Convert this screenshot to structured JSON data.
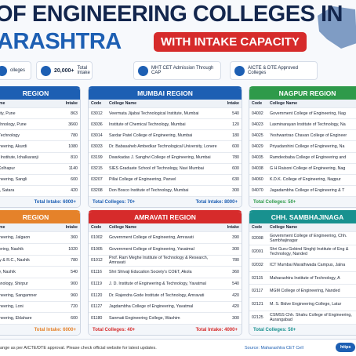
{
  "header": {
    "title_line1": "OF ENGINEERING COLLEGES IN",
    "title_line2": "ARASHTRA",
    "badge": "WITH INTAKE CAPACITY"
  },
  "stats": [
    {
      "number": "",
      "label": "olleges"
    },
    {
      "number": "20,000+",
      "label": "Total Intake"
    },
    {
      "number": "",
      "label": "MHT CET Admission Through CAP"
    },
    {
      "number": "",
      "label": "AICTE & DTE Approved Colleges"
    }
  ],
  "panels": [
    {
      "title": "REGION",
      "columns": [
        "Name",
        "Intake"
      ],
      "rows": [
        [
          "ersity, Pune",
          "863"
        ],
        [
          "Technology, Pune",
          "3660"
        ],
        [
          "er Technology",
          "780"
        ],
        [
          "ngineering, Akurdi",
          "1080"
        ],
        [
          "ing Institute, Ichalkaranji",
          "810"
        ],
        [
          "g, Kolhapur",
          "1140"
        ],
        [
          "ngineering, Sangli",
          "600"
        ],
        [
          "OE, Satara",
          "420"
        ]
      ],
      "totals": [
        "Total Intake: 6000+"
      ]
    },
    {
      "title": "MUMBAI REGION",
      "columns": [
        "Code",
        "College Name",
        "Intake"
      ],
      "rows": [
        [
          "03012",
          "Veermata Jijabai Technological Institute, Mumbai",
          "540"
        ],
        [
          "03036",
          "Institute of Chemical Technology, Mumbai",
          "120"
        ],
        [
          "03014",
          "Sardar Patel College of Engineering, Mumbai",
          "180"
        ],
        [
          "03033",
          "Dr. Babasaheb Ambedkar Technological University, Lonere",
          "600"
        ],
        [
          "03199",
          "Dwarkadas J. Sanghvi College of Engineering, Mumbai",
          "780"
        ],
        [
          "03215",
          "SIES Graduate School of Technology, Navi Mumbai",
          "600"
        ],
        [
          "03207",
          "Pillai College of Engineering, Panvel",
          "630"
        ],
        [
          "03208",
          "Don Bosco Institute of Technology, Mumbai",
          "300"
        ]
      ],
      "totals": [
        "Total Colleges: 70+",
        "Total Intake: 8000+"
      ]
    },
    {
      "title": "NAGPUR REGION",
      "columns": [
        "Code",
        "College Name"
      ],
      "rows": [
        [
          "04002",
          "Government College of Engineering, Nag"
        ],
        [
          "04023",
          "Laxminarayan Institute of Technology, Na"
        ],
        [
          "04025",
          "Yeshwantrao Chavan College of Engineer"
        ],
        [
          "04029",
          "Priyadarshini College of Engineering, Na"
        ],
        [
          "04035",
          "Ramdeobaba College of Engineering and"
        ],
        [
          "04038",
          "G H Raisoni College of Engineering, Nag"
        ],
        [
          "04060",
          "K.D.K. College of Engineering, Nagpur"
        ],
        [
          "04070",
          "Jagadambha College of Engineering & T"
        ]
      ],
      "totals": [
        "Total Colleges: 50+"
      ]
    },
    {
      "title": "REGION",
      "columns": [
        "Name",
        "Intake"
      ],
      "rows": [
        [
          "ngineering, Jalgaon",
          "360"
        ],
        [
          "ineering, Nashik",
          "1020"
        ],
        [
          "logy & R.C., Nashik",
          "780"
        ],
        [
          "City, Nashik",
          "540"
        ],
        [
          "echnology, Shirpur",
          "900"
        ],
        [
          "ngineering, Sangamner",
          "960"
        ],
        [
          "ngineering, Loni",
          "720"
        ],
        [
          "ngineering, Eklahare",
          "600"
        ]
      ],
      "totals": [
        "Total Intake: 6000+"
      ]
    },
    {
      "title": "AMRAVATI REGION",
      "columns": [
        "Code",
        "College Name",
        "Intake"
      ],
      "rows": [
        [
          "01002",
          "Government College of Engineering, Amravati",
          "390"
        ],
        [
          "01005",
          "Government College of Engineering, Yavatmal",
          "300"
        ],
        [
          "01012",
          "Prof. Ram Meghe Institute of Technology & Research, Amravati",
          "780"
        ],
        [
          "01116",
          "Shri Shivaji Education Society's COET, Akola",
          "360"
        ],
        [
          "01119",
          "J. D. Institute of Engineering & Technology, Yavatmal",
          "540"
        ],
        [
          "01120",
          "Dr. Rajendra Gode Institute of Technology, Amravati",
          "420"
        ],
        [
          "01127",
          "Jagdambha College of Engineering, Yavatmal",
          "420"
        ],
        [
          "01180",
          "Sanmati Engineering College, Washim",
          "300"
        ]
      ],
      "totals": [
        "Total Colleges: 40+",
        "Total Intake: 4000+"
      ]
    },
    {
      "title": "CHH. SAMBHAJINAGA",
      "columns": [
        "Code",
        "College Name"
      ],
      "rows": [
        [
          "02008",
          "Government College of Engineering, Chh. Sambhajinagar"
        ],
        [
          "02001",
          "Shri Guru Gobind Singhji Institute of Eng & Technology, Nanded"
        ],
        [
          "02032",
          "ICT Mumbai Marathwada Campus, Jalna"
        ],
        [
          "02115",
          "Maharashtra Institute of Technology, A"
        ],
        [
          "02117",
          "MGM College of Engineering, Nanded"
        ],
        [
          "02121",
          "M. S. Bidve Engineering College, Latur"
        ],
        [
          "02125",
          "CSMSS Chh. Shahu College of Engineering, Aurangabad"
        ]
      ],
      "totals": [
        "Total Colleges: 50+"
      ]
    }
  ],
  "footer": {
    "note": "ange as per AICTE/DTE approval. Please check official website for latest updates.",
    "source": "Source: Maharashtra CET Cell",
    "link": "https"
  }
}
